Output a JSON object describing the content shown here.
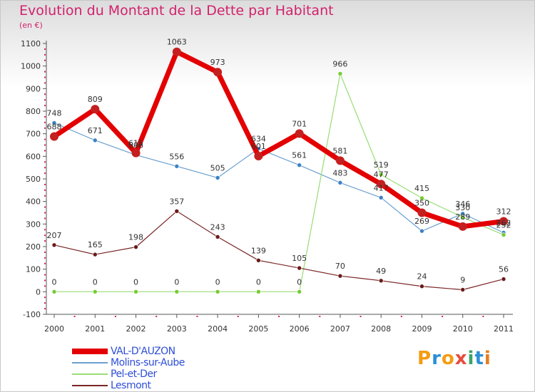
{
  "title": "Evolution du Montant de la Dette par Habitant",
  "subtitle": "(en €)",
  "brand": {
    "text": "Proxiti",
    "colors": [
      "#f39c12",
      "#2b8fd6",
      "#f39c12",
      "#e74c3c",
      "#3aa56a",
      "#2b8fd6",
      "#e67e22"
    ]
  },
  "chart_data": {
    "type": "line",
    "title": "Evolution du Montant de la Dette par Habitant",
    "ylabel": "(en €)",
    "xlabel": "",
    "x": [
      "2000",
      "2001",
      "2002",
      "2003",
      "2004",
      "2005",
      "2006",
      "2007",
      "2008",
      "2009",
      "2010",
      "2011"
    ],
    "ylim": [
      -100,
      1100
    ],
    "yticks": [
      -100,
      0,
      100,
      200,
      300,
      400,
      500,
      600,
      700,
      800,
      900,
      1000,
      1100
    ],
    "grid": false,
    "legend_position": "bottom-left",
    "series": [
      {
        "name": "VAL-D'AUZON",
        "color": "#e30000",
        "marker": "#c42020",
        "width": 7,
        "values": [
          688,
          809,
          615,
          1063,
          973,
          601,
          701,
          581,
          477,
          350,
          289,
          312
        ]
      },
      {
        "name": "Molins-sur-Aube",
        "color": "#6a9fd0",
        "marker": "#3a82c4",
        "width": 1.2,
        "values": [
          748,
          671,
          606,
          556,
          505,
          634,
          561,
          483,
          417,
          269,
          346,
          262
        ]
      },
      {
        "name": "Pel-et-Der",
        "color": "#99dd77",
        "marker": "#77cc33",
        "width": 1.2,
        "values": [
          0,
          0,
          0,
          0,
          0,
          0,
          0,
          966,
          519,
          415,
          330,
          252
        ]
      },
      {
        "name": "Lesmont",
        "color": "#7a2525",
        "marker": "#6a1a1a",
        "width": 1.2,
        "values": [
          207,
          165,
          198,
          357,
          243,
          139,
          105,
          70,
          49,
          24,
          9,
          56
        ]
      }
    ],
    "data_labels": [
      [
        "688",
        "809",
        "615",
        "1063",
        "973",
        "601",
        "701",
        "581",
        "477",
        "350",
        "289",
        "312"
      ],
      [
        "748",
        "671",
        "606",
        "556",
        "505",
        "634",
        "561",
        "483",
        "417",
        "269",
        "346",
        "262"
      ],
      [
        "0",
        "0",
        "0",
        "0",
        "0",
        "0",
        "0",
        "966",
        "519",
        "415",
        "330",
        "252"
      ],
      [
        "207",
        "165",
        "198",
        "357",
        "243",
        "139",
        "105",
        "70",
        "49",
        "24",
        "9",
        "56"
      ]
    ]
  }
}
